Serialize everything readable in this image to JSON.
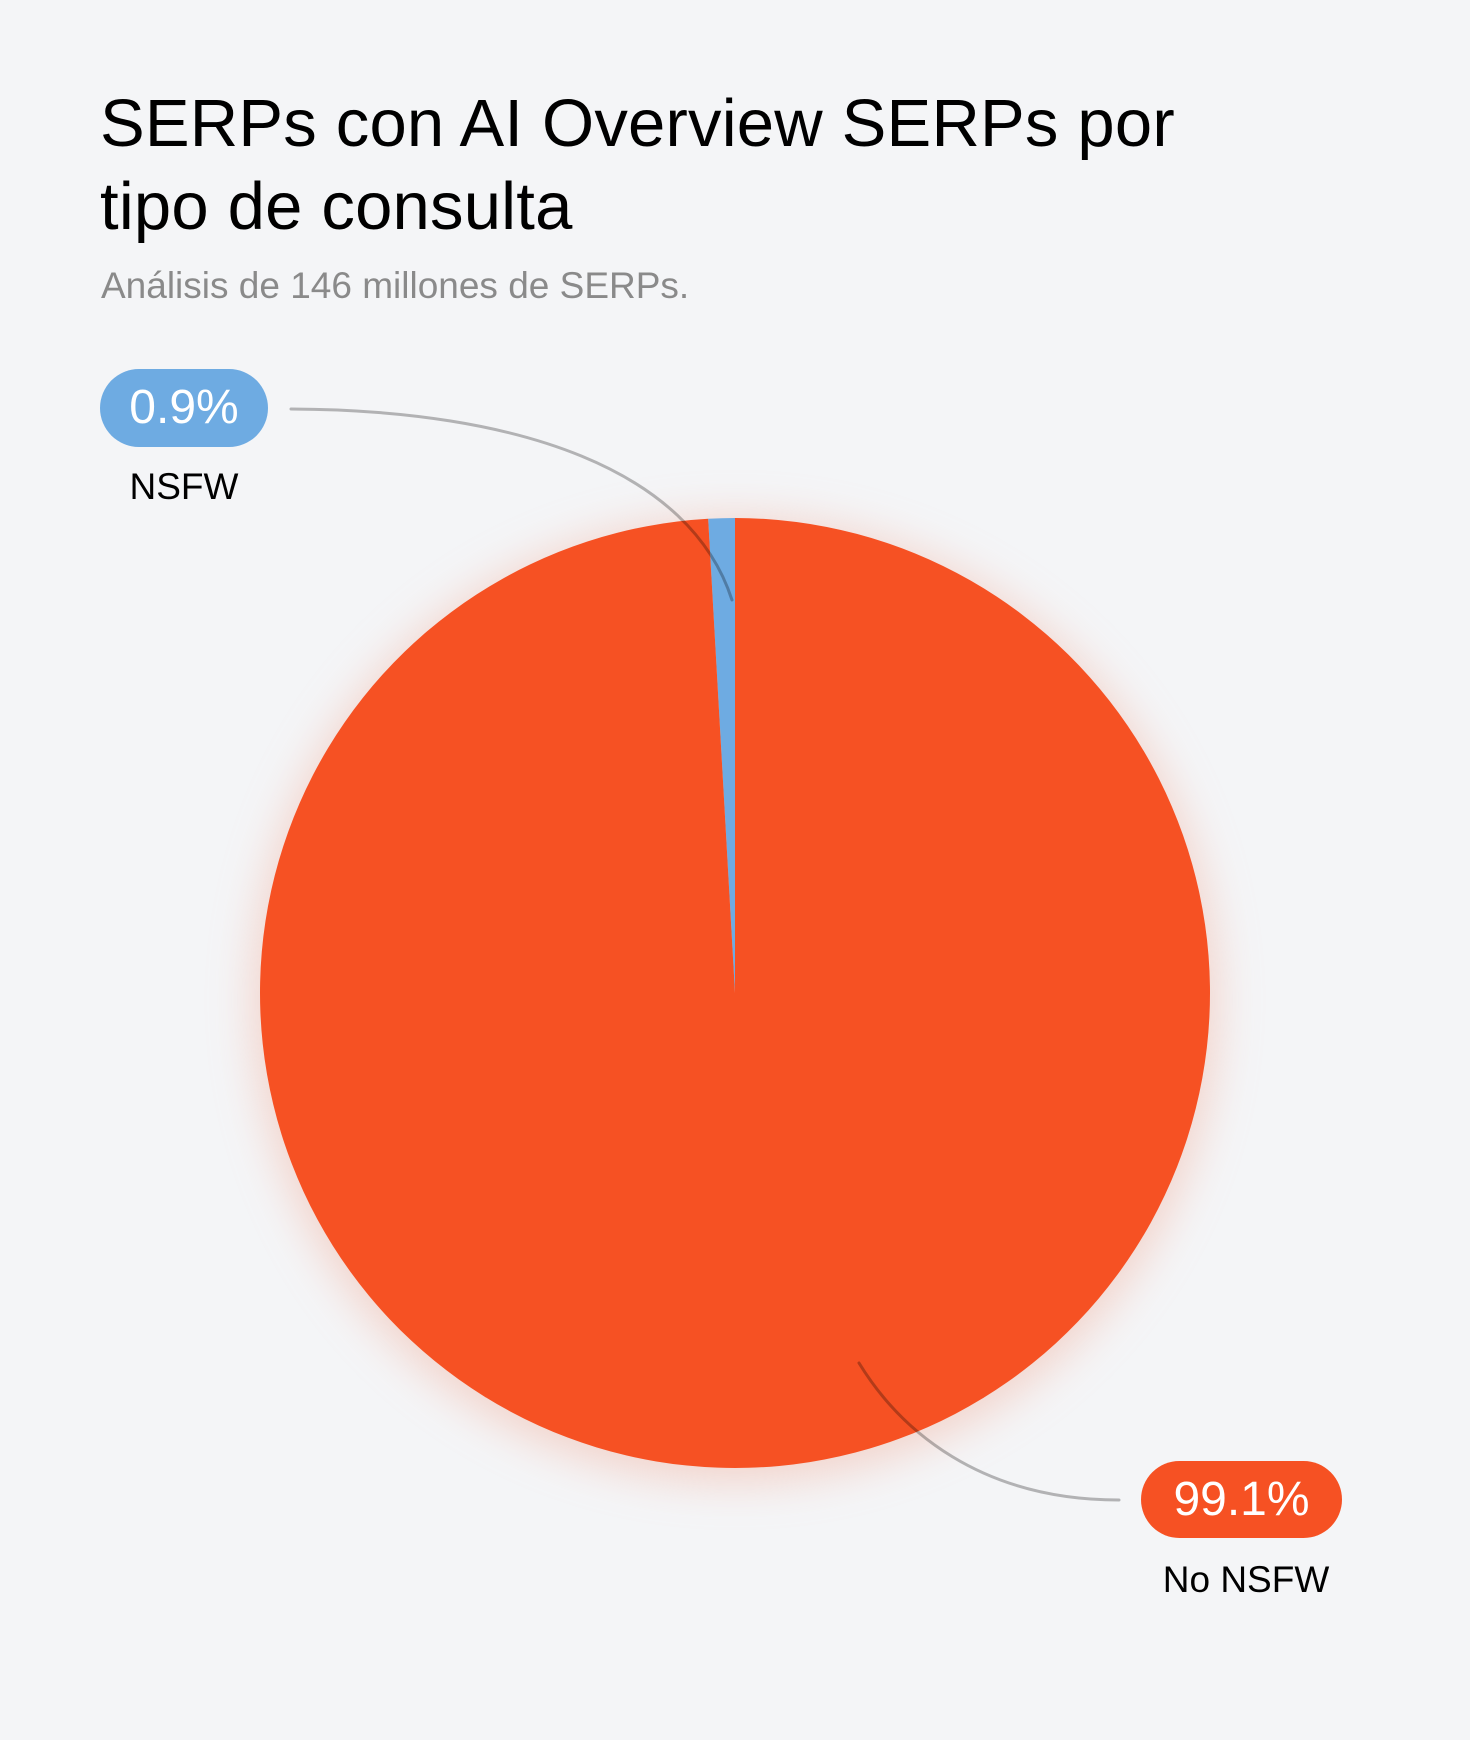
{
  "header": {
    "title": "SERPs con AI Overview SERPs por tipo de consulta",
    "subtitle": "Análisis de 146 millones de SERPs."
  },
  "colors": {
    "background": "#f4f5f7",
    "nsfw": "#6eabe2",
    "no_nsfw": "#f65123",
    "leader_line": "#9a9a9a",
    "subtitle": "#8a8a8a"
  },
  "segments": [
    {
      "label": "NSFW",
      "value_label": "0.9%"
    },
    {
      "label": "No NSFW",
      "value_label": "99.1%"
    }
  ],
  "chart_data": {
    "type": "pie",
    "title": "SERPs con AI Overview SERPs por tipo de consulta",
    "subtitle": "Análisis de 146 millones de SERPs.",
    "categories": [
      "NSFW",
      "No NSFW"
    ],
    "values": [
      0.9,
      99.1
    ],
    "unit": "%",
    "colors": [
      "#6eabe2",
      "#f65123"
    ],
    "start_angle": "12 o'clock, clockwise",
    "legend": "none (callout labels with leader lines)"
  }
}
